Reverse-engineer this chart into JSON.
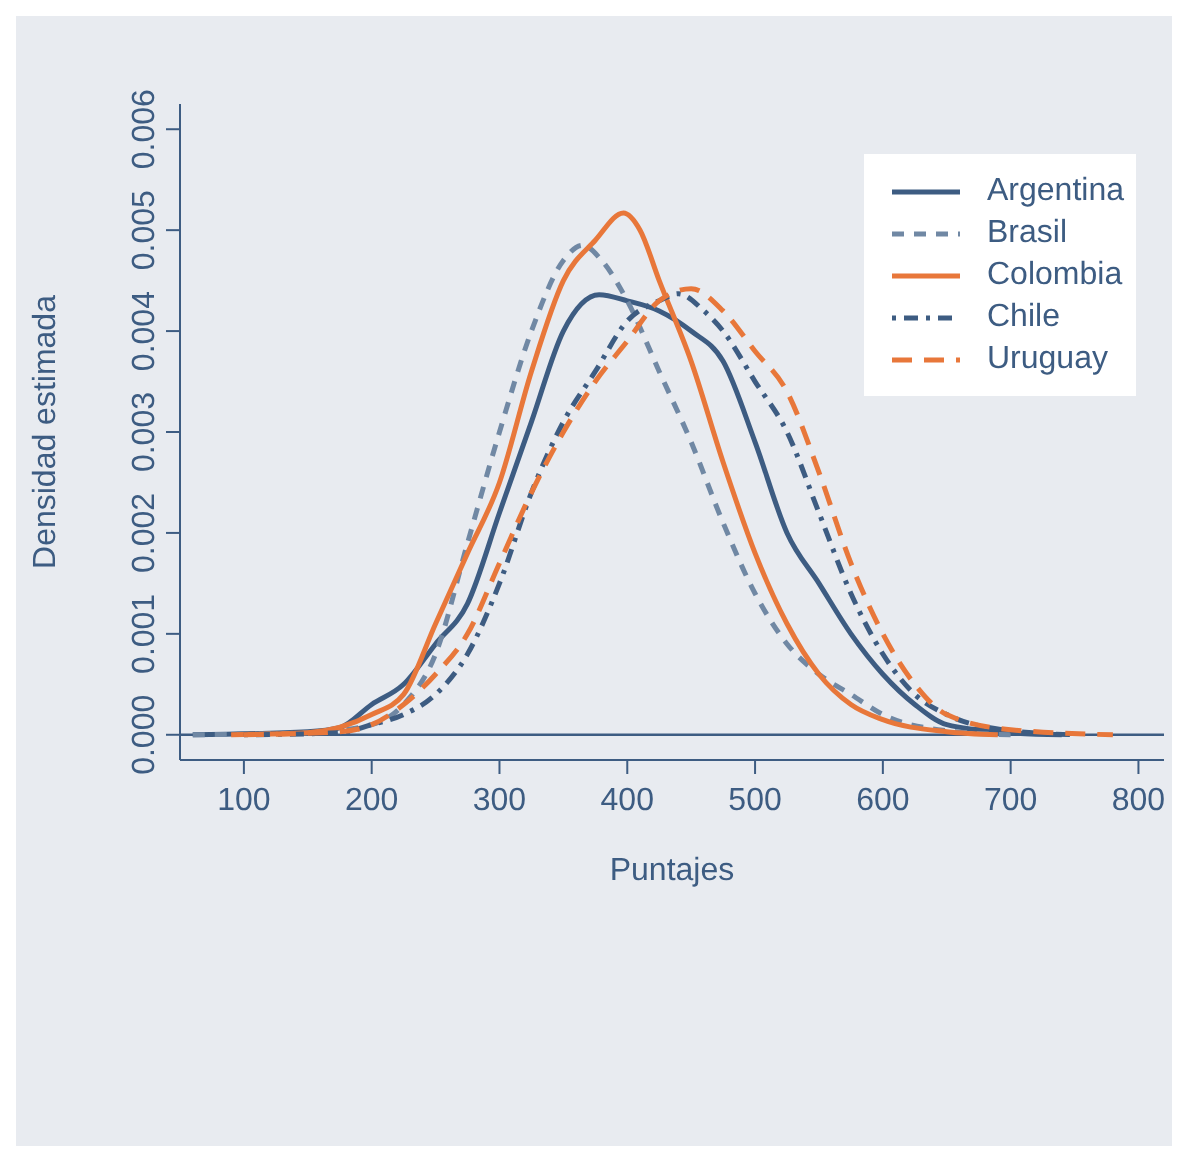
{
  "chart_data": {
    "type": "line",
    "xlabel": "Puntajes",
    "ylabel": "Densidad estimada",
    "xlim": [
      50,
      820
    ],
    "xticks": [
      100,
      200,
      300,
      400,
      500,
      600,
      700,
      800
    ],
    "ylim": [
      -0.00025,
      0.00625
    ],
    "yticks": [
      {
        "value": 0,
        "label": "0.000"
      },
      {
        "value": 0.001,
        "label": "0.001"
      },
      {
        "value": 0.002,
        "label": "0.002"
      },
      {
        "value": 0.003,
        "label": "0.003"
      },
      {
        "value": 0.004,
        "label": "0.004"
      },
      {
        "value": 0.005,
        "label": "0.005"
      },
      {
        "value": 0.006,
        "label": "0.006"
      }
    ],
    "grid": false,
    "legend": "top right",
    "marker": "none",
    "ref_lines": [
      {
        "axis": "y",
        "value": 0,
        "color": "#3d5c82"
      }
    ],
    "series": [
      {
        "name": "Argentina",
        "color": "#3d5c82",
        "line_style": "solid",
        "x": [
          60,
          150,
          175,
          200,
          225,
          250,
          275,
          300,
          325,
          350,
          378,
          400,
          425,
          450,
          475,
          500,
          525,
          550,
          575,
          600,
          625,
          650,
          700,
          740
        ],
        "values": [
          0,
          3e-05,
          7e-05,
          0.0003,
          0.0005,
          0.0009,
          0.0013,
          0.0022,
          0.0031,
          0.004,
          0.00436,
          0.0043,
          0.0042,
          0.004,
          0.0037,
          0.0029,
          0.002,
          0.0015,
          0.001,
          0.0006,
          0.0003,
          0.0001,
          2e-05,
          0
        ]
      },
      {
        "name": "Brasil",
        "color": "#7088a4",
        "line_style": "dashed",
        "x": [
          60,
          150,
          200,
          225,
          250,
          275,
          300,
          325,
          350,
          365,
          380,
          400,
          425,
          450,
          475,
          500,
          525,
          550,
          575,
          600,
          650,
          700
        ],
        "values": [
          0,
          2e-05,
          0.0001,
          0.0003,
          0.0008,
          0.0019,
          0.003,
          0.004,
          0.0047,
          0.00485,
          0.0047,
          0.0043,
          0.0036,
          0.0029,
          0.0021,
          0.0014,
          0.0009,
          0.0006,
          0.0004,
          0.0002,
          4e-05,
          0
        ]
      },
      {
        "name": "Colombia",
        "color": "#e8773a",
        "line_style": "solid",
        "x": [
          90,
          150,
          200,
          225,
          250,
          275,
          300,
          325,
          350,
          375,
          397,
          410,
          425,
          450,
          475,
          500,
          525,
          550,
          575,
          600,
          650,
          690
        ],
        "values": [
          0,
          2e-05,
          0.0002,
          0.0004,
          0.0011,
          0.0018,
          0.0025,
          0.0036,
          0.0045,
          0.0049,
          0.00517,
          0.005,
          0.0045,
          0.0037,
          0.0027,
          0.0018,
          0.0011,
          0.0006,
          0.0003,
          0.00015,
          3e-05,
          0
        ]
      },
      {
        "name": "Chile",
        "color": "#3d5c82",
        "line_style": "dashdot",
        "x": [
          100,
          175,
          200,
          225,
          250,
          275,
          300,
          325,
          350,
          375,
          400,
          425,
          440,
          460,
          475,
          500,
          525,
          550,
          575,
          600,
          625,
          650,
          700,
          750
        ],
        "values": [
          0,
          2e-05,
          0.0001,
          0.0002,
          0.0004,
          0.0008,
          0.0015,
          0.0024,
          0.0031,
          0.0036,
          0.0041,
          0.0043,
          0.00437,
          0.0042,
          0.004,
          0.0035,
          0.003,
          0.0022,
          0.0014,
          0.0008,
          0.0004,
          0.0002,
          4e-05,
          0
        ]
      },
      {
        "name": "Uruguay",
        "color": "#e8773a",
        "line_style": "longdash",
        "x": [
          100,
          175,
          200,
          225,
          250,
          275,
          300,
          325,
          350,
          375,
          400,
          425,
          450,
          475,
          500,
          525,
          550,
          575,
          600,
          625,
          650,
          700,
          780
        ],
        "values": [
          0,
          3e-05,
          0.0001,
          0.0003,
          0.0006,
          0.001,
          0.0017,
          0.0024,
          0.003,
          0.0035,
          0.0039,
          0.0043,
          0.00442,
          0.0042,
          0.0038,
          0.0034,
          0.0026,
          0.0017,
          0.001,
          0.0005,
          0.0002,
          5e-05,
          0
        ]
      }
    ]
  }
}
